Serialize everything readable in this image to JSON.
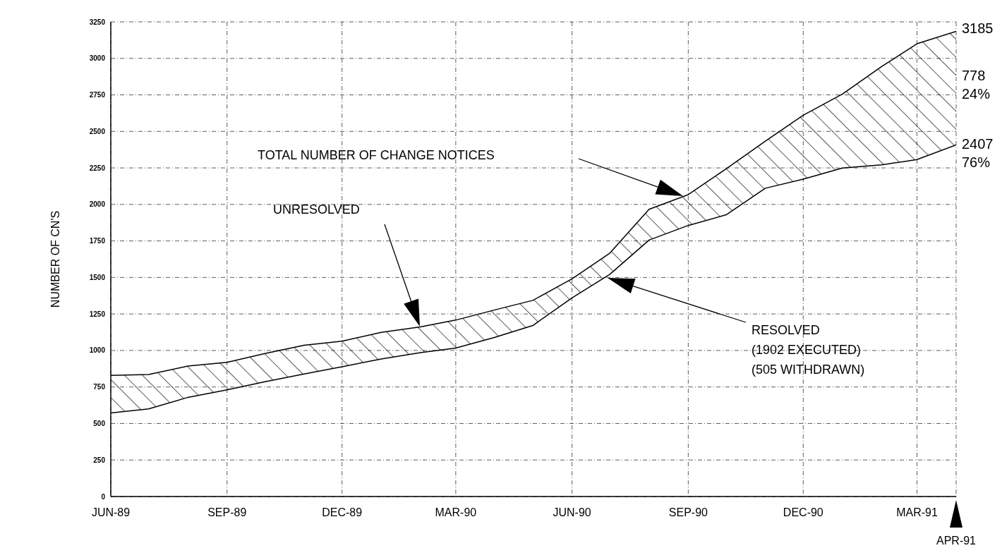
{
  "chart_data": {
    "type": "line",
    "ylabel": "NUMBER OF CN'S",
    "x": [
      "1989-06",
      "1989-07",
      "1989-08",
      "1989-09",
      "1989-10",
      "1989-11",
      "1989-12",
      "1990-01",
      "1990-02",
      "1990-03",
      "1990-04",
      "1990-05",
      "1990-06",
      "1990-07",
      "1990-08",
      "1990-09",
      "1990-10",
      "1990-11",
      "1990-12",
      "1991-01",
      "1991-02",
      "1991-03",
      "1991-04"
    ],
    "series": [
      {
        "color": "#000000",
        "values": [
          572,
          600,
          679,
          730,
          786,
          839,
          889,
          942,
          985,
          1017,
          1090,
          1171,
          1360,
          1522,
          1756,
          1856,
          1929,
          2111,
          2173,
          2249,
          2271,
          2307,
          2407
        ]
      },
      {
        "type": "area",
        "color": "#000000",
        "values": [
          829,
          835,
          893,
          919,
          979,
          1036,
          1064,
          1124,
          1161,
          1208,
          1278,
          1343,
          1490,
          1667,
          1967,
          2067,
          2244,
          2433,
          2611,
          2756,
          2944,
          3100,
          3185
        ]
      }
    ],
    "xlim": [
      "1989-06",
      "1991-04"
    ],
    "xticks": [
      {
        "value": "1989-06",
        "label": "JUN-89"
      },
      {
        "value": "1989-09",
        "label": "SEP-89"
      },
      {
        "value": "1989-12",
        "label": "DEC-89"
      },
      {
        "value": "1990-03",
        "label": "MAR-90"
      },
      {
        "value": "1990-06",
        "label": "JUN-90"
      },
      {
        "value": "1990-09",
        "label": "SEP-90"
      },
      {
        "value": "1990-12",
        "label": "DEC-90"
      },
      {
        "value": "1991-03",
        "label": "MAR-91"
      }
    ],
    "ylim": [
      0,
      3250
    ],
    "yticks": [
      0,
      250,
      500,
      750,
      1000,
      1250,
      1500,
      1750,
      2000,
      2250,
      2500,
      2750,
      3000,
      3250
    ],
    "grid": true,
    "annotations": [
      "TOTAL NUMBER OF CHANGE NOTICES",
      "UNRESOLVED",
      "RESOLVED\n(1902 EXECUTED)\n(505 WITHDRAWN)",
      {
        "text": "3185",
        "x": "1991-04",
        "y": 3185
      },
      {
        "text": "778\n24%",
        "x": "1991-04",
        "y": 2796
      },
      {
        "text": "2407\n76%",
        "x": "1991-04",
        "y": 2407
      },
      "APR-91"
    ]
  }
}
